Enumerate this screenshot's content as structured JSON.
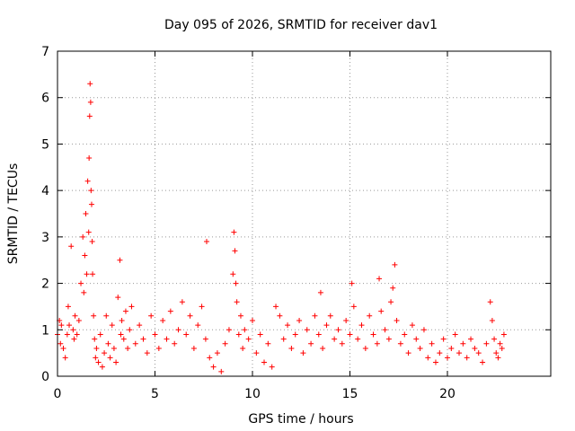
{
  "chart_data": {
    "type": "scatter",
    "title": "Day 095 of 2026, SRMTID for receiver dav1",
    "xlabel": "GPS time / hours",
    "ylabel": "SRMTID / TECUs",
    "xlim": [
      0,
      25.3
    ],
    "ylim": [
      0,
      7
    ],
    "xticks": [
      "0",
      "5",
      "10",
      "15",
      "20"
    ],
    "yticks": [
      "0",
      "1",
      "2",
      "3",
      "4",
      "5",
      "6",
      "7"
    ],
    "grid": true,
    "marker": "+",
    "series_color": "#ff0000",
    "series": [
      {
        "name": "SRMTID",
        "x": [
          0.0,
          0.1,
          0.15,
          0.2,
          0.3,
          0.4,
          0.5,
          0.55,
          0.6,
          0.7,
          0.8,
          0.85,
          0.9,
          1.0,
          1.1,
          1.2,
          1.3,
          1.35,
          1.4,
          1.45,
          1.5,
          1.55,
          1.6,
          1.62,
          1.65,
          1.67,
          1.7,
          1.72,
          1.75,
          1.78,
          1.8,
          1.85,
          1.9,
          1.95,
          2.0,
          2.1,
          2.2,
          2.3,
          2.4,
          2.5,
          2.6,
          2.7,
          2.8,
          2.9,
          3.0,
          3.1,
          3.2,
          3.25,
          3.3,
          3.4,
          3.5,
          3.6,
          3.7,
          3.8,
          4.0,
          4.2,
          4.4,
          4.6,
          4.8,
          5.0,
          5.2,
          5.4,
          5.6,
          5.8,
          6.0,
          6.2,
          6.4,
          6.6,
          6.8,
          7.0,
          7.2,
          7.4,
          7.6,
          7.65,
          7.8,
          8.0,
          8.2,
          8.4,
          8.6,
          8.8,
          9.0,
          9.05,
          9.1,
          9.15,
          9.2,
          9.3,
          9.4,
          9.5,
          9.6,
          9.8,
          10.0,
          10.2,
          10.4,
          10.6,
          10.8,
          11.0,
          11.2,
          11.4,
          11.6,
          11.8,
          12.0,
          12.2,
          12.4,
          12.6,
          12.8,
          13.0,
          13.2,
          13.4,
          13.5,
          13.6,
          13.8,
          14.0,
          14.2,
          14.4,
          14.6,
          14.8,
          15.0,
          15.1,
          15.2,
          15.4,
          15.6,
          15.8,
          16.0,
          16.2,
          16.4,
          16.5,
          16.6,
          16.8,
          17.0,
          17.1,
          17.2,
          17.3,
          17.4,
          17.6,
          17.8,
          18.0,
          18.2,
          18.4,
          18.6,
          18.8,
          19.0,
          19.2,
          19.4,
          19.6,
          19.8,
          20.0,
          20.2,
          20.4,
          20.6,
          20.8,
          21.0,
          21.2,
          21.4,
          21.6,
          21.8,
          22.0,
          22.2,
          22.3,
          22.4,
          22.5,
          22.6,
          22.7,
          22.8,
          22.9
        ],
        "y": [
          0.9,
          1.2,
          0.7,
          1.1,
          0.6,
          0.4,
          0.9,
          1.5,
          1.1,
          2.8,
          1.0,
          0.8,
          1.3,
          0.9,
          1.2,
          2.0,
          3.0,
          1.8,
          2.6,
          3.5,
          2.2,
          4.2,
          3.1,
          4.7,
          5.6,
          6.3,
          5.9,
          4.0,
          3.7,
          2.9,
          2.2,
          1.3,
          0.8,
          0.4,
          0.6,
          0.3,
          0.9,
          0.2,
          0.5,
          1.3,
          0.7,
          0.4,
          1.1,
          0.6,
          0.3,
          1.7,
          2.5,
          0.9,
          1.2,
          0.8,
          1.4,
          0.6,
          1.0,
          1.5,
          0.7,
          1.1,
          0.8,
          0.5,
          1.3,
          0.9,
          0.6,
          1.2,
          0.8,
          1.4,
          0.7,
          1.0,
          1.6,
          0.9,
          1.3,
          0.6,
          1.1,
          1.5,
          0.8,
          2.9,
          0.4,
          0.2,
          0.5,
          0.1,
          0.7,
          1.0,
          2.2,
          3.1,
          2.7,
          2.0,
          1.6,
          0.9,
          1.3,
          0.6,
          1.0,
          0.8,
          1.2,
          0.5,
          0.9,
          0.3,
          0.7,
          0.2,
          1.5,
          1.3,
          0.8,
          1.1,
          0.6,
          0.9,
          1.2,
          0.5,
          1.0,
          0.7,
          1.3,
          0.9,
          1.8,
          0.6,
          1.1,
          1.3,
          0.8,
          1.0,
          0.7,
          1.2,
          0.9,
          2.0,
          1.5,
          0.8,
          1.1,
          0.6,
          1.3,
          0.9,
          0.7,
          2.1,
          1.4,
          1.0,
          0.8,
          1.6,
          1.9,
          2.4,
          1.2,
          0.7,
          0.9,
          0.5,
          1.1,
          0.8,
          0.6,
          1.0,
          0.4,
          0.7,
          0.3,
          0.5,
          0.8,
          0.4,
          0.6,
          0.9,
          0.5,
          0.7,
          0.4,
          0.8,
          0.6,
          0.5,
          0.3,
          0.7,
          1.6,
          1.2,
          0.8,
          0.5,
          0.4,
          0.7,
          0.6,
          0.9
        ]
      }
    ]
  }
}
